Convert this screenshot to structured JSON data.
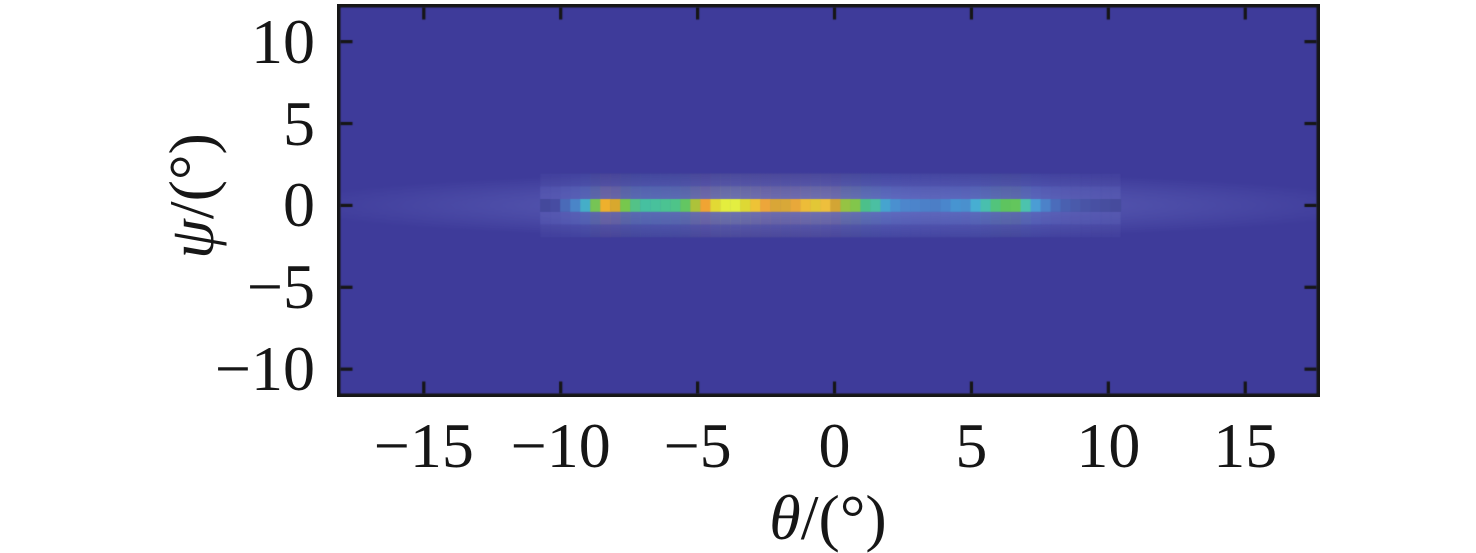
{
  "figure": {
    "background": "#ffffff",
    "frame_color": "#161616",
    "tick_label_color": "#161616",
    "halo_color": "#7b85d4"
  },
  "chart_data": {
    "type": "heatmap",
    "title": "",
    "xlabel": "θ/(°)",
    "ylabel": "ψ/(°)",
    "xlabel_symbol": "θ",
    "xlabel_suffix": "/(°)",
    "ylabel_symbol": "ψ",
    "ylabel_suffix": "/(°)",
    "xlim": [
      -18.2,
      17.7
    ],
    "ylim": [
      -12,
      12
    ],
    "x_ticks": [
      -15,
      -10,
      -5,
      0,
      5,
      10,
      15
    ],
    "y_ticks": [
      10,
      5,
      0,
      -5,
      -10
    ],
    "x_tick_labels": [
      "−15",
      "−10",
      "−5",
      "0",
      "5",
      "10",
      "15"
    ],
    "y_tick_labels": [
      "10",
      "5",
      "0",
      "−5",
      "−10"
    ],
    "grid": false,
    "legend": "none",
    "colorbar": "none",
    "palette_style": "jet",
    "background_color": "#3e3b9a",
    "beam_line": {
      "description": "bright horizontal ridge of the heatmap at psi = 0",
      "psi_center_deg": 0,
      "theta_start_deg": -10.75,
      "theta_step_deg": 0.3655,
      "cell_height_deg": 0.78,
      "cell_colors": [
        "#44499c",
        "#474ca2",
        "#4a6ab8",
        "#4a85c8",
        "#45aec8",
        "#76c455",
        "#eeb02d",
        "#d8a82e",
        "#77c74d",
        "#53c287",
        "#46c0a0",
        "#48c19c",
        "#4bc392",
        "#4ec489",
        "#63c662",
        "#adc23a",
        "#f0a433",
        "#e2d934",
        "#e4ee3e",
        "#e3ee41",
        "#ded834",
        "#eec336",
        "#eda63a",
        "#d9a637",
        "#d8a838",
        "#e8a83a",
        "#edbc38",
        "#e2c736",
        "#eebf3c",
        "#d3a534",
        "#96c343",
        "#82c64b",
        "#4cc08a",
        "#4bbfa2",
        "#46a4cf",
        "#4a90d0",
        "#4d86cc",
        "#4c84cb",
        "#4c80c8",
        "#4c7ec6",
        "#4a86cc",
        "#4794d1",
        "#4a90ce",
        "#47aed2",
        "#49bfae",
        "#52c47c",
        "#5ec45f",
        "#63c65c",
        "#4cc3ad",
        "#4b9dd4",
        "#4c82c9",
        "#4b6cbb",
        "#4a60b0",
        "#4a5aab",
        "#4954a6",
        "#4850a3",
        "#474e9f",
        "#464b9d"
      ]
    }
  }
}
